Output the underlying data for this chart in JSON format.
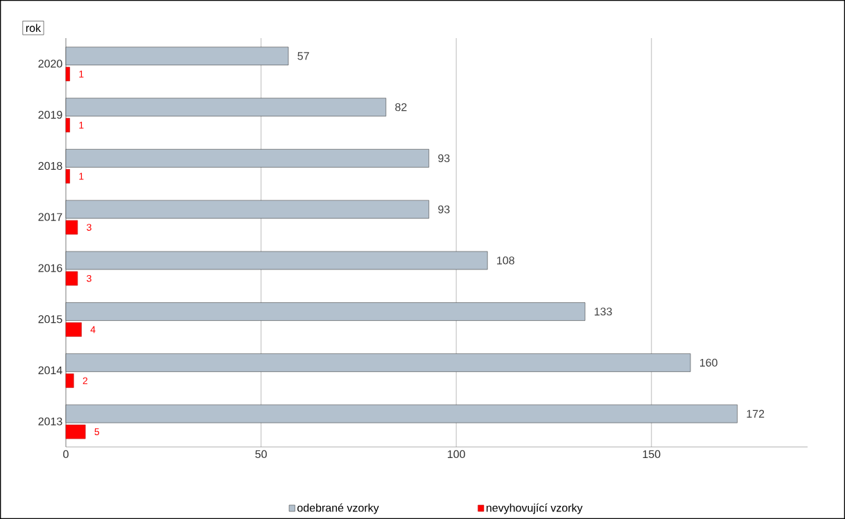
{
  "chart_data": {
    "type": "bar",
    "orientation": "horizontal",
    "ylabel": "rok",
    "categories": [
      "2020",
      "2019",
      "2018",
      "2017",
      "2016",
      "2015",
      "2014",
      "2013"
    ],
    "series": [
      {
        "name": "odebrané vzorky",
        "color": "#b3c1ce",
        "values": [
          57,
          82,
          93,
          93,
          108,
          133,
          160,
          172
        ]
      },
      {
        "name": "nevyhovující vzorky",
        "color": "#ff0000",
        "values": [
          1,
          1,
          1,
          3,
          3,
          4,
          2,
          5
        ]
      }
    ],
    "xlim": [
      0,
      190
    ],
    "xticks": [
      0,
      50,
      100,
      150
    ],
    "grid": "x",
    "legend": "bottom",
    "data_labels": true
  }
}
